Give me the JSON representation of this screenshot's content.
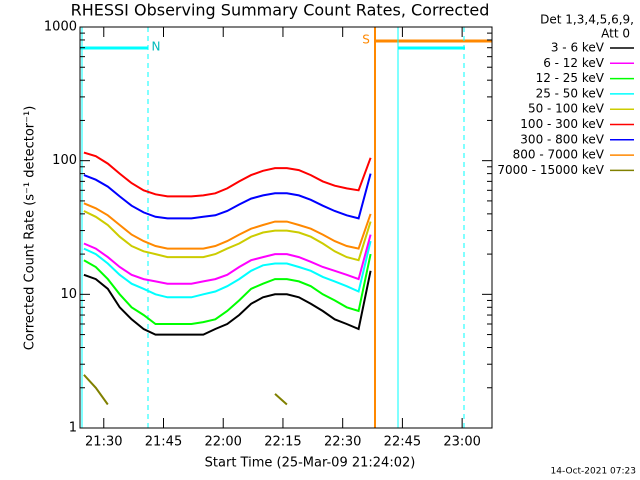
{
  "chart_data": {
    "type": "line",
    "title": "RHESSI Observing Summary Count Rates, Corrected",
    "xlabel": "Start Time (25-Mar-09 21:24:02)",
    "ylabel": "Corrected Count Rate (s⁻¹ detector⁻¹)",
    "footer": "14-Oct-2021 07:23",
    "legend_title": [
      "Det 1,3,4,5,6,9,",
      "Att 0"
    ],
    "annotations": [
      "N",
      "S"
    ],
    "log_y": true,
    "xlim": [
      1284.03,
      1387.5
    ],
    "xticks": [
      {
        "value": 1290,
        "label": "21:30"
      },
      {
        "value": 1305,
        "label": "21:45"
      },
      {
        "value": 1320,
        "label": "22:00"
      },
      {
        "value": 1335,
        "label": "22:15"
      },
      {
        "value": 1350,
        "label": "22:30"
      },
      {
        "value": 1365,
        "label": "22:45"
      },
      {
        "value": 1380,
        "label": "23:00"
      }
    ],
    "ylim": [
      1,
      1000
    ],
    "yticks": [
      1,
      10,
      100,
      1000
    ],
    "yminorticks": [
      2,
      3,
      4,
      5,
      6,
      7,
      8,
      9,
      20,
      30,
      40,
      50,
      60,
      70,
      80,
      90,
      200,
      300,
      400,
      500,
      600,
      700,
      800,
      900
    ],
    "x": [
      1285,
      1288,
      1291,
      1294,
      1297,
      1300,
      1303,
      1306,
      1309,
      1312,
      1315,
      1318,
      1321,
      1324,
      1327,
      1330,
      1333,
      1336,
      1339,
      1342,
      1345,
      1348,
      1351,
      1354,
      1357
    ],
    "series": [
      {
        "name": "3 - 6 keV",
        "color": "#000000",
        "values": [
          14,
          13,
          11,
          8,
          6.5,
          5.5,
          5,
          5,
          5,
          5,
          5,
          5.5,
          6,
          7,
          8.5,
          9.5,
          10,
          10,
          9.5,
          8.5,
          7.5,
          6.5,
          6,
          5.5,
          15
        ]
      },
      {
        "name": "6 - 12 keV",
        "color": "#ff00ff",
        "values": [
          24,
          22,
          19,
          16,
          14,
          13,
          12.5,
          12,
          12,
          12,
          12.5,
          13,
          14,
          16,
          18,
          19,
          20,
          20,
          19,
          17.5,
          16,
          15,
          14,
          13,
          28
        ]
      },
      {
        "name": "12 - 25 keV",
        "color": "#00ff00",
        "values": [
          18,
          16,
          13,
          10,
          8,
          7,
          6,
          6,
          6,
          6,
          6.2,
          6.5,
          7.5,
          9,
          11,
          12,
          13,
          13,
          12.5,
          11.5,
          10,
          9,
          8,
          7.5,
          20
        ]
      },
      {
        "name": "25 - 50 keV",
        "color": "#00ffff",
        "values": [
          22,
          20,
          17,
          14,
          12,
          11,
          10,
          9.5,
          9.5,
          9.5,
          10,
          10.5,
          11.5,
          13,
          15,
          16.5,
          17,
          17,
          16,
          15,
          13.5,
          12.5,
          11.5,
          10.5,
          25
        ]
      },
      {
        "name": "50 - 100 keV",
        "color": "#cccc00",
        "values": [
          42,
          38,
          33,
          27,
          23,
          21,
          20,
          19,
          19,
          19,
          19,
          20,
          22,
          24,
          27,
          29,
          30,
          30,
          29,
          27,
          24,
          21,
          19,
          18,
          35
        ]
      },
      {
        "name": "100 - 300 keV",
        "color": "#ff0000",
        "values": [
          115,
          108,
          95,
          80,
          68,
          60,
          56,
          54,
          54,
          54,
          55,
          57,
          62,
          70,
          78,
          84,
          88,
          88,
          85,
          78,
          70,
          65,
          62,
          60,
          105
        ]
      },
      {
        "name": "300 - 800 keV",
        "color": "#0000ff",
        "values": [
          78,
          72,
          64,
          54,
          46,
          41,
          38,
          37,
          37,
          37,
          38,
          39,
          42,
          47,
          52,
          55,
          57,
          57,
          55,
          51,
          46,
          42,
          39,
          37,
          80
        ]
      },
      {
        "name": "800 - 7000 keV",
        "color": "#ff8800",
        "values": [
          48,
          44,
          39,
          33,
          28,
          25,
          23,
          22,
          22,
          22,
          22,
          23,
          25,
          28,
          31,
          33,
          35,
          35,
          33,
          31,
          28,
          25,
          23,
          22,
          40
        ]
      },
      {
        "name": "7000 - 15000 keV",
        "color": "#808000",
        "values": [
          2.5,
          2,
          1.5,
          null,
          null,
          null,
          null,
          null,
          null,
          null,
          null,
          null,
          null,
          null,
          null,
          null,
          1.8,
          1.5,
          null,
          null,
          null,
          null,
          null,
          null,
          null
        ]
      }
    ]
  }
}
